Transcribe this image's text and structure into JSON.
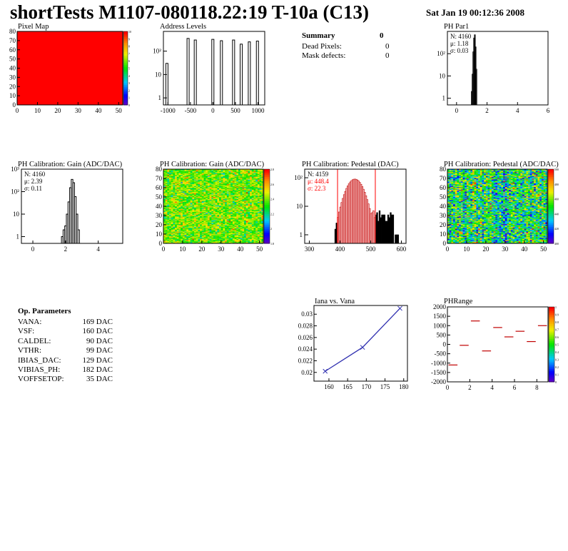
{
  "header": {
    "title": "shortTests M1107-080118.22:19 T-10a (C13)",
    "date": "Sat Jan 19 00:12:36 2008"
  },
  "colors": {
    "red": "#ff0000",
    "navy": "#0000aa",
    "blue_line": "#3030b0"
  },
  "summary": {
    "title": "Summary",
    "total": "0",
    "rows": [
      {
        "label": "Dead Pixels:",
        "value": "0"
      },
      {
        "label": "Mask defects:",
        "value": "0"
      }
    ]
  },
  "op_params": {
    "title": "Op. Parameters",
    "rows": [
      {
        "label": "VANA:",
        "value": "169 DAC"
      },
      {
        "label": "VSF:",
        "value": "160 DAC"
      },
      {
        "label": "CALDEL:",
        "value": "90 DAC"
      },
      {
        "label": "VTHR:",
        "value": "99 DAC"
      },
      {
        "label": "IBIAS_DAC:",
        "value": "129 DAC"
      },
      {
        "label": "VIBIAS_PH:",
        "value": "182 DAC"
      },
      {
        "label": "VOFFSETOP:",
        "value": "35 DAC"
      }
    ]
  },
  "chart_data": [
    {
      "id": "pixelmap",
      "type": "heatmap",
      "title": "Pixel Map",
      "xlim": [
        0,
        52
      ],
      "ylim": [
        0,
        80
      ],
      "xticks": [
        "0",
        "10",
        "20",
        "30",
        "40",
        "50"
      ],
      "yticks": [
        "0",
        "10",
        "20",
        "30",
        "40",
        "50",
        "60",
        "70",
        "80"
      ],
      "fill_value": 10,
      "zlim": [
        0,
        10
      ],
      "palette_ticks": [
        "0",
        "1",
        "2",
        "3",
        "4",
        "5",
        "6",
        "7",
        "8",
        "9",
        "10"
      ]
    },
    {
      "id": "address",
      "type": "bar",
      "title": "Address Levels",
      "log_y": true,
      "xlim": [
        -1100,
        1150
      ],
      "ylim": [
        0.5,
        700
      ],
      "xticks": [
        "-1000",
        "-500",
        "0",
        "500",
        "1000"
      ],
      "yticks": [
        "1",
        "10",
        "10²"
      ],
      "peaks": [
        {
          "x": -1030,
          "h": 30
        },
        {
          "x": -560,
          "h": 350
        },
        {
          "x": -400,
          "h": 300
        },
        {
          "x": -10,
          "h": 320
        },
        {
          "x": 180,
          "h": 280
        },
        {
          "x": 450,
          "h": 300
        },
        {
          "x": 620,
          "h": 200
        },
        {
          "x": 800,
          "h": 250
        },
        {
          "x": 980,
          "h": 270
        }
      ]
    },
    {
      "id": "phpar1",
      "type": "bar",
      "title": "PH Par1",
      "log_y": true,
      "xlim": [
        -0.6,
        6
      ],
      "ylim": [
        0.5,
        1000
      ],
      "xticks": [
        "0",
        "2",
        "4",
        "6"
      ],
      "yticks": [
        "1",
        "10",
        "10²"
      ],
      "stats": [
        "N: 4160",
        "μ: 1.18",
        "σ: 0.03"
      ],
      "bins": [
        {
          "x": 1.0,
          "h": 2
        },
        {
          "x": 1.05,
          "h": 12
        },
        {
          "x": 1.1,
          "h": 120
        },
        {
          "x": 1.15,
          "h": 500
        },
        {
          "x": 1.2,
          "h": 700
        },
        {
          "x": 1.25,
          "h": 200
        },
        {
          "x": 1.3,
          "h": 20
        }
      ]
    },
    {
      "id": "gainhist",
      "type": "bar",
      "title": "PH Calibration: Gain (ADC/DAC)",
      "log_y": true,
      "xlim": [
        -0.7,
        5.5
      ],
      "ylim": [
        0.5,
        1000
      ],
      "xticks": [
        "0",
        "2",
        "4"
      ],
      "yticks": [
        "1",
        "10",
        "10²",
        "10³"
      ],
      "stats": [
        "N: 4160",
        "μ: 2.39",
        "σ: 0.11"
      ],
      "bins": [
        {
          "x": 1.8,
          "h": 1
        },
        {
          "x": 1.9,
          "h": 2
        },
        {
          "x": 2.0,
          "h": 3
        },
        {
          "x": 2.1,
          "h": 10
        },
        {
          "x": 2.2,
          "h": 35
        },
        {
          "x": 2.3,
          "h": 150
        },
        {
          "x": 2.4,
          "h": 350
        },
        {
          "x": 2.5,
          "h": 250
        },
        {
          "x": 2.6,
          "h": 60
        },
        {
          "x": 2.7,
          "h": 10
        },
        {
          "x": 2.8,
          "h": 2
        }
      ]
    },
    {
      "id": "gainmap",
      "type": "heatmap",
      "title": "PH Calibration: Gain (ADC/DAC)",
      "xlim": [
        0,
        52
      ],
      "ylim": [
        0,
        80
      ],
      "xticks": [
        "0",
        "10",
        "20",
        "30",
        "40",
        "50"
      ],
      "yticks": [
        "0",
        "10",
        "20",
        "30",
        "40",
        "50",
        "60",
        "70",
        "80"
      ],
      "zlim": [
        1.8,
        2.8
      ],
      "mean": 2.39,
      "sigma": 0.11,
      "palette_ticks": [
        "1.8",
        "2",
        "2.2",
        "2.4",
        "2.6",
        "2.8"
      ]
    },
    {
      "id": "pedhist",
      "type": "bar",
      "title": "PH Calibration: Pedestal (DAC)",
      "log_y": true,
      "xlim": [
        285,
        615
      ],
      "ylim": [
        0.5,
        200
      ],
      "xticks": [
        "300",
        "400",
        "500",
        "600"
      ],
      "yticks": [
        "1",
        "10",
        "10²"
      ],
      "stats": [
        "N: 4159",
        "μ: 448.4",
        "σ: 22.3"
      ],
      "fit_lines": [
        392,
        515
      ],
      "mean": 448.4,
      "sigma": 22.3,
      "peak": 90
    },
    {
      "id": "pedmap",
      "type": "heatmap",
      "title": "PH Calibration: Pedestal (ADC/DAC)",
      "xlim": [
        0,
        52
      ],
      "ylim": [
        0,
        80
      ],
      "xticks": [
        "0",
        "10",
        "20",
        "30",
        "40",
        "50"
      ],
      "yticks": [
        "0",
        "10",
        "20",
        "30",
        "40",
        "50",
        "60",
        "70",
        "80"
      ],
      "zlim": [
        390,
        510
      ],
      "mean": 448,
      "sigma": 22,
      "palette_ticks": [
        "400",
        "420",
        "440",
        "460",
        "480",
        "500"
      ]
    },
    {
      "id": "iana",
      "type": "line",
      "title": "Iana vs. Vana",
      "xlim": [
        156,
        181
      ],
      "ylim": [
        0.0185,
        0.0315
      ],
      "xticks": [
        "160",
        "165",
        "170",
        "175",
        "180"
      ],
      "yticks": [
        "0.02",
        "0.022",
        "0.024",
        "0.026",
        "0.028",
        "0.03"
      ],
      "x": [
        159,
        169,
        179
      ],
      "y": [
        0.0202,
        0.0243,
        0.031
      ]
    },
    {
      "id": "phrange",
      "type": "scatter",
      "title": "PHRange",
      "xlim": [
        0,
        9
      ],
      "ylim": [
        -2000,
        2000
      ],
      "xticks": [
        "0",
        "2",
        "4",
        "6",
        "8"
      ],
      "yticks": [
        "-2000",
        "-1500",
        "-1000",
        "-500",
        "0",
        "500",
        "1000",
        "1500",
        "2000"
      ],
      "palette_ticks": [
        "0",
        "0.1",
        "0.2",
        "0.3",
        "0.4",
        "0.5",
        "0.6",
        "0.7",
        "0.8",
        "0.9",
        "1"
      ],
      "segments": [
        {
          "x": 0,
          "y": -1100
        },
        {
          "x": 1,
          "y": -50
        },
        {
          "x": 2,
          "y": 1250
        },
        {
          "x": 3,
          "y": -350
        },
        {
          "x": 4,
          "y": 900
        },
        {
          "x": 5,
          "y": 400
        },
        {
          "x": 6,
          "y": 700
        },
        {
          "x": 7,
          "y": 150
        },
        {
          "x": 8,
          "y": 1000
        }
      ]
    }
  ]
}
